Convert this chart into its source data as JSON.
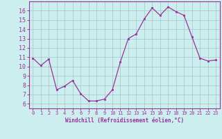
{
  "x": [
    0,
    1,
    2,
    3,
    4,
    5,
    6,
    7,
    8,
    9,
    10,
    11,
    12,
    13,
    14,
    15,
    16,
    17,
    18,
    19,
    20,
    21,
    22,
    23
  ],
  "y": [
    10.9,
    10.1,
    10.8,
    7.5,
    7.9,
    8.5,
    7.1,
    6.3,
    6.3,
    6.5,
    7.5,
    10.5,
    13.0,
    13.5,
    15.1,
    16.3,
    15.5,
    16.4,
    15.9,
    15.5,
    13.2,
    10.9,
    10.6,
    10.7
  ],
  "line_color": "#993399",
  "marker_color": "#993399",
  "bg_color": "#cceeee",
  "grid_color": "#aacccc",
  "xlabel": "Windchill (Refroidissement éolien,°C)",
  "xlabel_color": "#993399",
  "tick_color": "#993399",
  "spine_color": "#993399",
  "ylim": [
    5.5,
    17.0
  ],
  "yticks": [
    6,
    7,
    8,
    9,
    10,
    11,
    12,
    13,
    14,
    15,
    16
  ],
  "xlim": [
    -0.5,
    23.5
  ],
  "xticks": [
    0,
    1,
    2,
    3,
    4,
    5,
    6,
    7,
    8,
    9,
    10,
    11,
    12,
    13,
    14,
    15,
    16,
    17,
    18,
    19,
    20,
    21,
    22,
    23
  ]
}
